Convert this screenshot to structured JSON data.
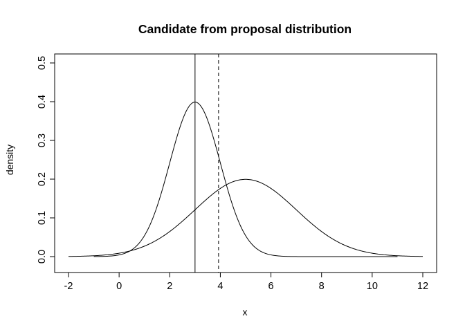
{
  "chart_data": {
    "type": "line",
    "title": "Candidate from proposal distribution",
    "xlabel": "x",
    "ylabel": "density",
    "xlim": [
      -2,
      12
    ],
    "ylim": [
      0,
      0.5
    ],
    "x_ticks": [
      -2,
      0,
      2,
      4,
      6,
      8,
      10,
      12
    ],
    "y_ticks": [
      0.0,
      0.1,
      0.2,
      0.3,
      0.4,
      0.5
    ],
    "y_tick_labels": [
      "0.0",
      "0.1",
      "0.2",
      "0.3",
      "0.4",
      "0.5"
    ],
    "series": [
      {
        "distribution": "normal",
        "mean": 3,
        "sd": 1,
        "x_range": [
          -1,
          11
        ],
        "line_style": "solid",
        "x": [
          -1,
          -0.5,
          0,
          0.5,
          1,
          1.5,
          2,
          2.5,
          3,
          3.5,
          4,
          4.5,
          5,
          5.5,
          6,
          6.5,
          7,
          8,
          9,
          10,
          11
        ],
        "values": [
          0.0001,
          0.0009,
          0.0044,
          0.0175,
          0.054,
          0.1295,
          0.242,
          0.3521,
          0.3989,
          0.3521,
          0.242,
          0.1295,
          0.054,
          0.0175,
          0.0044,
          0.0009,
          0.0001,
          0.0,
          0.0,
          0.0,
          0.0
        ]
      },
      {
        "distribution": "normal",
        "mean": 5,
        "sd": 2,
        "x_range": [
          -2,
          12
        ],
        "line_style": "solid",
        "x": [
          -2,
          -1,
          0,
          1,
          2,
          3,
          4,
          5,
          6,
          7,
          8,
          9,
          10,
          11,
          12
        ],
        "values": [
          0.0004,
          0.0022,
          0.0088,
          0.027,
          0.0648,
          0.121,
          0.176,
          0.1995,
          0.176,
          0.121,
          0.0648,
          0.027,
          0.0088,
          0.0022,
          0.0004
        ]
      }
    ],
    "vertical_lines": [
      {
        "x": 3.0,
        "line_style": "solid"
      },
      {
        "x": 3.93,
        "line_style": "dashed"
      }
    ],
    "grid": false,
    "legend": "none"
  }
}
